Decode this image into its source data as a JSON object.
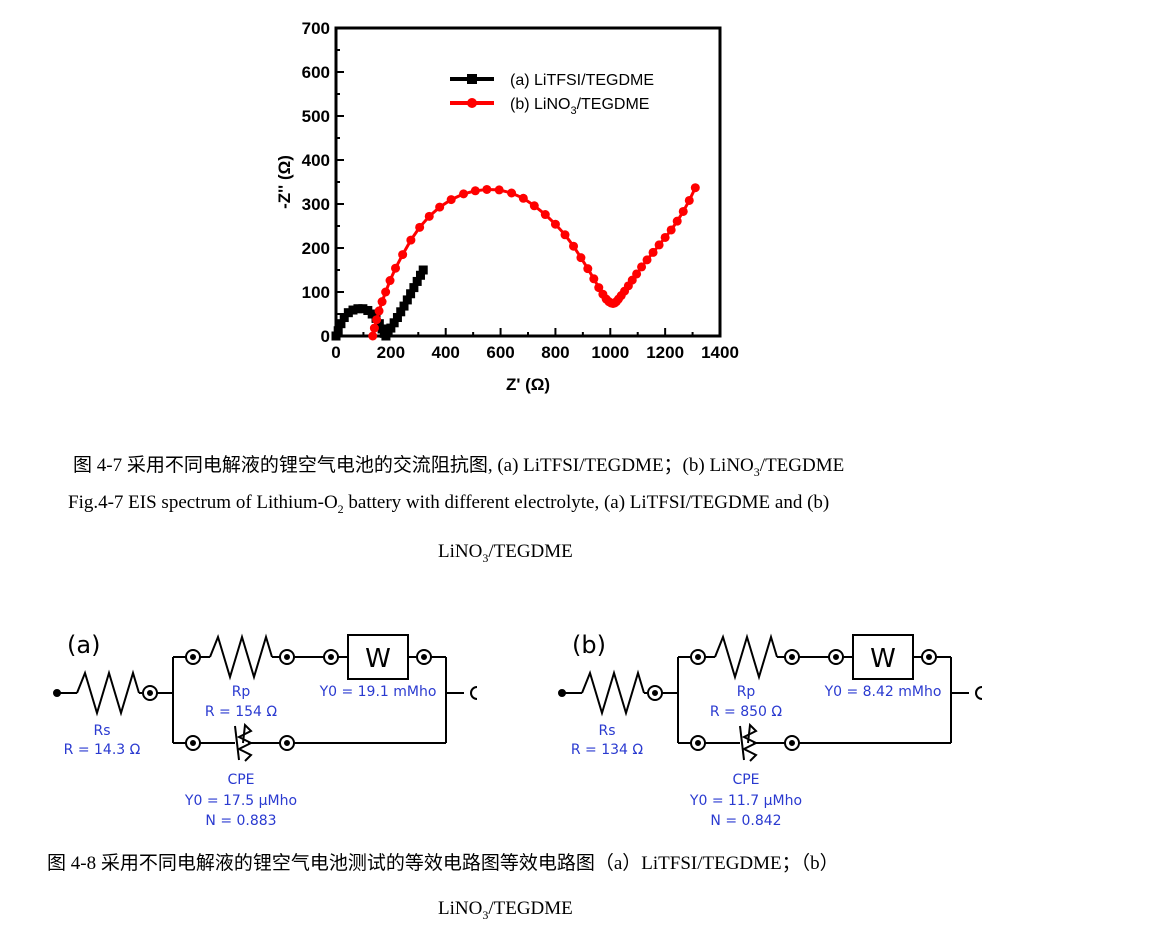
{
  "chart_data": {
    "type": "scatter",
    "xlabel": "Z' (Ω)",
    "ylabel": "-Z'' (Ω)",
    "xlim": [
      0,
      1400
    ],
    "ylim": [
      0,
      700
    ],
    "xticks": [
      "0",
      "200",
      "400",
      "600",
      "800",
      "1000",
      "1200",
      "1400"
    ],
    "yticks": [
      "0",
      "100",
      "200",
      "300",
      "400",
      "500",
      "600",
      "700"
    ],
    "legend_position": "top-right",
    "series": [
      {
        "name": "(a) LiTFSI/TEGDME",
        "legend_main": "(a)  LiTFSI/TEGDME",
        "color": "#000000",
        "marker": "square",
        "x": [
          0,
          8,
          18,
          30,
          45,
          62,
          80,
          98,
          116,
          132,
          146,
          158,
          168,
          176,
          182,
          190,
          200,
          212,
          224,
          236,
          248,
          260,
          272,
          284,
          296,
          308,
          318
        ],
        "y": [
          0,
          12,
          28,
          42,
          53,
          59,
          62,
          62,
          58,
          50,
          40,
          28,
          16,
          6,
          0,
          8,
          18,
          30,
          42,
          55,
          68,
          82,
          96,
          110,
          124,
          138,
          150
        ]
      },
      {
        "name": "(b) LiNO3/TEGDME",
        "legend_main": "(b)  LiNO",
        "legend_sub": "3",
        "legend_tail": "/TEGDME",
        "color": "#ff0000",
        "marker": "circle",
        "x": [
          134,
          140,
          148,
          157,
          168,
          181,
          197,
          217,
          243,
          273,
          305,
          340,
          378,
          420,
          465,
          508,
          550,
          595,
          640,
          683,
          723,
          763,
          800,
          835,
          866,
          893,
          918,
          940,
          958,
          973,
          985,
          995,
          1003,
          1010,
          1016,
          1022,
          1030,
          1040,
          1052,
          1066,
          1080,
          1096,
          1114,
          1134,
          1156,
          1178,
          1200,
          1222,
          1244,
          1266,
          1288,
          1310
        ],
        "y": [
          0,
          18,
          37,
          57,
          78,
          100,
          126,
          154,
          185,
          218,
          247,
          272,
          293,
          310,
          323,
          330,
          333,
          332,
          325,
          313,
          296,
          276,
          254,
          230,
          204,
          178,
          153,
          130,
          110,
          95,
          84,
          78,
          75,
          74,
          75,
          78,
          84,
          92,
          102,
          114,
          127,
          141,
          157,
          173,
          190,
          207,
          224,
          241,
          261,
          283,
          308,
          337
        ]
      }
    ]
  },
  "figure": {
    "caption_cn_1_main": "图 4-7 采用不同电解液的锂空气电池的交流阻抗图, (a) LiTFSI/TEGDME；(b) LiNO",
    "caption_cn_1_sub": "3",
    "caption_cn_1_tail": "/TEGDME",
    "caption_en_1_main": "Fig.4-7 EIS spectrum of Lithium-O",
    "caption_en_1_sub": "2",
    "caption_en_1_tail": " battery with different electrolyte, (a) LiTFSI/TEGDME and (b)",
    "caption_en_2_main": "LiNO",
    "caption_en_2_sub": "3",
    "caption_en_2_tail": "/TEGDME",
    "caption_cn_2": "图 4-8 采用不同电解液的锂空气电池测试的等效电路图等效电路图（a）LiTFSI/TEGDME；（b）",
    "caption_cn_3_main": "LiNO",
    "caption_cn_3_sub": "3",
    "caption_cn_3_tail": "/TEGDME"
  },
  "circuits": [
    {
      "label": "(a)",
      "rs_name": "Rs",
      "rs_value": "R = 14.3 Ω",
      "rp_name": "Rp",
      "rp_value": "R = 154 Ω",
      "w_symbol": "W",
      "w_value": "Y0 = 19.1 mMho",
      "cpe_name": "CPE",
      "cpe_y0": "Y0 = 17.5 μMho",
      "cpe_n": "N = 0.883"
    },
    {
      "label": "(b)",
      "rs_name": "Rs",
      "rs_value": "R = 134 Ω",
      "rp_name": "Rp",
      "rp_value": "R = 850 Ω",
      "w_symbol": "W",
      "w_value": "Y0 = 8.42 mMho",
      "cpe_name": "CPE",
      "cpe_y0": "Y0 = 11.7 μMho",
      "cpe_n": "N = 0.842"
    }
  ]
}
